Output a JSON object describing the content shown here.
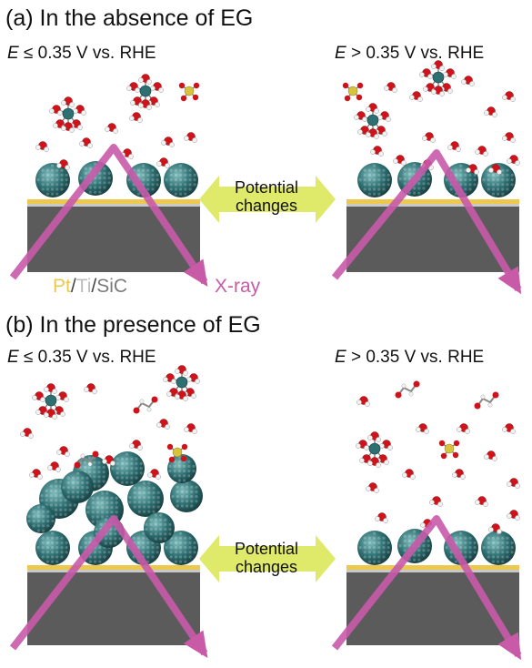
{
  "panel_a": {
    "heading": "(a) In the absence of EG",
    "left_condition": {
      "symbol": "E",
      "text": " ≤ 0.35 V vs. RHE"
    },
    "right_condition": {
      "symbol": "E",
      "text": " > 0.35 V vs. RHE"
    },
    "center_arrow": {
      "line1": "Potential",
      "line2": "changes"
    }
  },
  "legend": {
    "pt": "Pt",
    "sep1": "/",
    "ti": "Ti",
    "sep2": "/",
    "sic": "SiC",
    "xray": "X-ray"
  },
  "panel_b": {
    "heading": "(b) In the presence of EG",
    "left_condition": {
      "symbol": "E",
      "text": " ≤ 0.35 V vs. RHE"
    },
    "right_condition": {
      "symbol": "E",
      "text": " > 0.35 V vs. RHE"
    },
    "center_arrow": {
      "line1": "Potential",
      "line2": "changes"
    }
  },
  "colors": {
    "pt_layer": "#ecc84e",
    "ti_layer": "#c9c9c9",
    "sic_substrate": "#5b5b5b",
    "nanoparticle": "#2e6f72",
    "xray_beam": "#c85aa8",
    "potential_arrow": "#dfe96a",
    "oxygen": "#d0131b",
    "hydrogen": "#f2f2f2",
    "sulfur": "#d8c43c"
  }
}
